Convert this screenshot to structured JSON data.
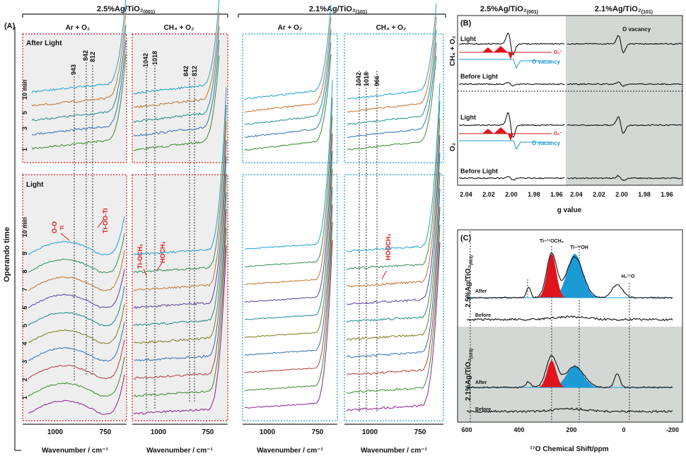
{
  "chart_data": [
    {
      "panel": "(A)",
      "type": "line",
      "ylabel": "Operando time",
      "xlabel": "Wavenumber / cm⁻¹",
      "x_ticks": [
        "1000",
        "750"
      ],
      "top_ticks_after": [
        "1",
        "3",
        "5",
        "10 min"
      ],
      "side_ticks_light": [
        "1",
        "2",
        "3",
        "4",
        "5",
        "6",
        "7",
        "8",
        "9",
        "10 min"
      ],
      "sections": [
        {
          "sample": "2.5%Ag/TiO₂",
          "facet": "(001)",
          "atmospheres": [
            "Ar + O₂",
            "CH₄ + O₂"
          ]
        },
        {
          "sample": "2.1%Ag/TiO₂",
          "facet": "(101)",
          "atmospheres": [
            "Ar + O₂",
            "CH₄ + O₂"
          ]
        }
      ],
      "row_labels": [
        "After Light",
        "Light"
      ],
      "peak_labels": {
        "ar_after": [
          "943",
          "842",
          "812"
        ],
        "ch4_after": [
          "1042",
          "1018",
          "842",
          "812"
        ],
        "ch4_101_after": [
          "1042",
          "1018",
          "966"
        ]
      },
      "annotations": [
        "O-O",
        "Ti",
        "Ti-OO-Ti",
        "Ti-OCH₃",
        "HOCH₃",
        "HOOCH₃"
      ],
      "series_colors": [
        "#8a1f8f",
        "#3a8a2d",
        "#b03c3c",
        "#2f6fb0",
        "#7a7a1a",
        "#1f8a8a",
        "#5a3ea0",
        "#c0702a",
        "#2e8f55",
        "#1f9fd0"
      ]
    },
    {
      "panel": "(B)",
      "type": "line",
      "xlabel": "g value",
      "x_ticks": [
        "2.04",
        "2.02",
        "2.00",
        "1.98",
        "1.96"
      ],
      "columns": [
        {
          "sample": "2.5%Ag/TiO₂",
          "facet": "(001)"
        },
        {
          "sample": "2.1%Ag/TiO₂",
          "facet": "(101)"
        }
      ],
      "rows": [
        {
          "atmosphere": "CH₄ + O₂",
          "traces": [
            "Light",
            "Before Light"
          ]
        },
        {
          "atmosphere": "O₂",
          "traces": [
            "Light",
            "Before Light"
          ]
        }
      ],
      "fit_labels": [
        "O₂⁻",
        "O vacancy"
      ],
      "annotation": "O vacancy",
      "colors": {
        "superoxide": "#e0141c",
        "vacancy": "#1b9ad6",
        "shade": "#d3d8d5"
      }
    },
    {
      "panel": "(C)",
      "type": "line",
      "xlabel": "¹⁷O Chemical Shift/ppm",
      "x_ticks": [
        "600",
        "400",
        "200",
        "0",
        "-200"
      ],
      "xlim": [
        600,
        -200
      ],
      "samples": [
        {
          "sample": "2.5%Ag/TiO₂",
          "facet": "(001)",
          "traces": [
            "After",
            "Before"
          ]
        },
        {
          "sample": "2.1%Ag/TiO₂",
          "facet": "(101)",
          "traces": [
            "After",
            "Before"
          ]
        }
      ],
      "peak_labels": [
        "Ti–¹⁷OCH₃",
        "Ti–¹⁷OH",
        "H₂¹⁷O"
      ],
      "peaks_ppm": {
        "Ti-OCH3": 270,
        "Ti-OH": 180,
        "H2O": 15
      },
      "colors": {
        "Ti-OCH3": "#e0141c",
        "Ti-OH": "#1b9ad6"
      }
    }
  ]
}
